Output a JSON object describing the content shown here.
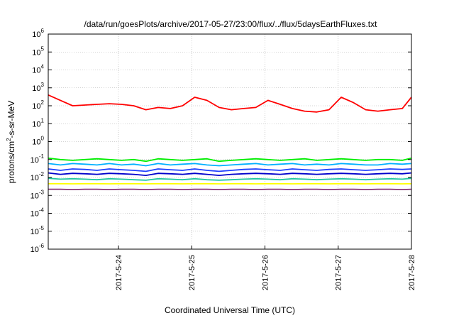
{
  "chart_data": {
    "type": "line",
    "title": "/data/run/goesPlots/archive/2017-05-27/23:00/flux/../flux/5daysEarthFluxes.txt",
    "xlabel": "Coordinated Universal Time (UTC)",
    "ylabel_main": "protons/cm",
    "ylabel_sup": "2",
    "ylabel_tail": "-s-sr-MeV",
    "y_scale": "log",
    "ylim_exponents": [
      -6,
      6
    ],
    "y_ticks": [
      {
        "base": "10",
        "exp": "-6",
        "e": -6
      },
      {
        "base": "10",
        "exp": "-5",
        "e": -5
      },
      {
        "base": "10",
        "exp": "-4",
        "e": -4
      },
      {
        "base": "10",
        "exp": "-3",
        "e": -3
      },
      {
        "base": "10",
        "exp": "-2",
        "e": -2
      },
      {
        "base": "10",
        "exp": "-1",
        "e": -1
      },
      {
        "base": "10",
        "exp": "0",
        "e": 0
      },
      {
        "base": "10",
        "exp": "1",
        "e": 1
      },
      {
        "base": "10",
        "exp": "2",
        "e": 2
      },
      {
        "base": "10",
        "exp": "3",
        "e": 3
      },
      {
        "base": "10",
        "exp": "4",
        "e": 4
      },
      {
        "base": "10",
        "exp": "5",
        "e": 5
      },
      {
        "base": "10",
        "exp": "6",
        "e": 6
      }
    ],
    "x_ticks": [
      "2017-5-24",
      "2017-5-25",
      "2017-5-26",
      "2017-5-27",
      "2017-5-28"
    ],
    "x_range": [
      "2017-05-23 01:00",
      "2017-05-28 00:00"
    ],
    "grid": true,
    "x": [
      "2017-05-23 01:00",
      "2017-05-23 05:00",
      "2017-05-23 09:00",
      "2017-05-23 13:00",
      "2017-05-23 17:00",
      "2017-05-23 21:00",
      "2017-05-24 01:00",
      "2017-05-24 05:00",
      "2017-05-24 09:00",
      "2017-05-24 13:00",
      "2017-05-24 17:00",
      "2017-05-24 21:00",
      "2017-05-25 01:00",
      "2017-05-25 05:00",
      "2017-05-25 09:00",
      "2017-05-25 13:00",
      "2017-05-25 17:00",
      "2017-05-25 21:00",
      "2017-05-26 01:00",
      "2017-05-26 05:00",
      "2017-05-26 09:00",
      "2017-05-26 13:00",
      "2017-05-26 17:00",
      "2017-05-26 21:00",
      "2017-05-27 01:00",
      "2017-05-27 05:00",
      "2017-05-27 09:00",
      "2017-05-27 13:00",
      "2017-05-27 17:00",
      "2017-05-27 21:00",
      "2017-05-28 00:00"
    ],
    "series": [
      {
        "color": "#ff0000",
        "values": [
          400,
          200,
          100,
          110,
          120,
          130,
          120,
          100,
          60,
          80,
          70,
          100,
          300,
          200,
          80,
          60,
          70,
          80,
          200,
          120,
          70,
          50,
          45,
          60,
          300,
          150,
          60,
          50,
          60,
          70,
          300
        ]
      },
      {
        "color": "#00ee00",
        "values": [
          0.12,
          0.1,
          0.09,
          0.1,
          0.11,
          0.1,
          0.09,
          0.1,
          0.08,
          0.11,
          0.1,
          0.09,
          0.1,
          0.11,
          0.08,
          0.09,
          0.1,
          0.11,
          0.1,
          0.09,
          0.1,
          0.11,
          0.09,
          0.1,
          0.11,
          0.1,
          0.09,
          0.1,
          0.1,
          0.09,
          0.12
        ]
      },
      {
        "color": "#00b0ff",
        "values": [
          0.06,
          0.05,
          0.06,
          0.055,
          0.05,
          0.06,
          0.05,
          0.055,
          0.045,
          0.06,
          0.05,
          0.055,
          0.06,
          0.05,
          0.045,
          0.05,
          0.055,
          0.06,
          0.05,
          0.055,
          0.06,
          0.05,
          0.055,
          0.05,
          0.06,
          0.055,
          0.05,
          0.05,
          0.06,
          0.055,
          0.06
        ]
      },
      {
        "color": "#2040ff",
        "values": [
          0.03,
          0.025,
          0.03,
          0.028,
          0.025,
          0.03,
          0.027,
          0.025,
          0.022,
          0.03,
          0.027,
          0.025,
          0.03,
          0.025,
          0.022,
          0.025,
          0.028,
          0.03,
          0.027,
          0.025,
          0.03,
          0.027,
          0.025,
          0.028,
          0.03,
          0.027,
          0.025,
          0.027,
          0.03,
          0.028,
          0.03
        ]
      },
      {
        "color": "#0000cc",
        "values": [
          0.018,
          0.015,
          0.017,
          0.016,
          0.015,
          0.017,
          0.016,
          0.015,
          0.013,
          0.017,
          0.016,
          0.015,
          0.017,
          0.015,
          0.013,
          0.015,
          0.016,
          0.017,
          0.016,
          0.015,
          0.017,
          0.016,
          0.015,
          0.016,
          0.017,
          0.016,
          0.015,
          0.016,
          0.017,
          0.016,
          0.018
        ]
      },
      {
        "color": "#20c8a0",
        "values": [
          0.009,
          0.008,
          0.0085,
          0.008,
          0.0075,
          0.0085,
          0.008,
          0.0075,
          0.007,
          0.0085,
          0.008,
          0.0075,
          0.0085,
          0.0075,
          0.007,
          0.0075,
          0.008,
          0.0085,
          0.008,
          0.0075,
          0.0085,
          0.008,
          0.0075,
          0.008,
          0.0085,
          0.008,
          0.0075,
          0.008,
          0.0085,
          0.008,
          0.009
        ]
      },
      {
        "color": "#ffff00",
        "values": [
          0.0045,
          0.0045,
          0.0044,
          0.0045,
          0.0045,
          0.0044,
          0.0045,
          0.0045,
          0.0044,
          0.0045,
          0.0045,
          0.0044,
          0.0045,
          0.0045,
          0.0044,
          0.0045,
          0.0045,
          0.0044,
          0.0045,
          0.0045,
          0.0044,
          0.0045,
          0.0045,
          0.0044,
          0.0045,
          0.0045,
          0.0044,
          0.0045,
          0.0045,
          0.0044,
          0.0045
        ]
      },
      {
        "color": "#883377",
        "values": [
          0.0022,
          0.0022,
          0.0021,
          0.0022,
          0.0022,
          0.0021,
          0.0022,
          0.0022,
          0.0021,
          0.0022,
          0.0022,
          0.0021,
          0.0022,
          0.0022,
          0.0021,
          0.0022,
          0.0022,
          0.0021,
          0.0022,
          0.0022,
          0.0021,
          0.0022,
          0.0022,
          0.0021,
          0.0022,
          0.0022,
          0.0021,
          0.0022,
          0.0022,
          0.0021,
          0.0022
        ]
      }
    ]
  }
}
